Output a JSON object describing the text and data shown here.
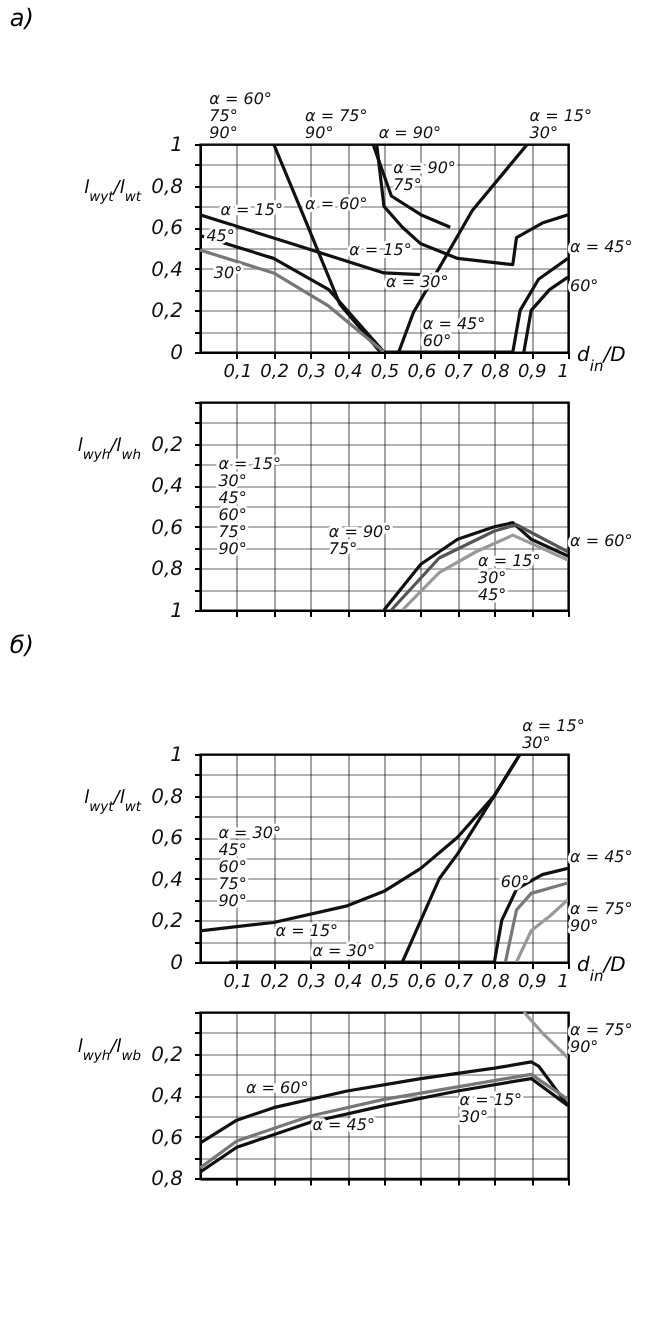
{
  "chart_data": [
    {
      "type": "line",
      "title": "а)",
      "xlabel": "d$_{in}$/D",
      "ylabel": "l$_{wyt}$/l$_{wt}$",
      "xlim": [
        0,
        1
      ],
      "ylim": [
        0,
        1
      ],
      "grid": true,
      "xticks": [
        {
          "value": 0.1,
          "label": "0,1"
        },
        {
          "value": 0.2,
          "label": "0,2"
        },
        {
          "value": 0.3,
          "label": "0,3"
        },
        {
          "value": 0.4,
          "label": "0,4"
        },
        {
          "value": 0.5,
          "label": "0,5"
        },
        {
          "value": 0.6,
          "label": "0,6"
        },
        {
          "value": 0.7,
          "label": "0,7"
        },
        {
          "value": 0.8,
          "label": "0,8"
        },
        {
          "value": 0.9,
          "label": "0,9"
        },
        {
          "value": 1,
          "label": "1"
        }
      ],
      "yticks": [
        {
          "value": 0,
          "label": "0"
        },
        {
          "value": 0.1,
          "label": null
        },
        {
          "value": 0.2,
          "label": "0,2"
        },
        {
          "value": 0.3,
          "label": null
        },
        {
          "value": 0.4,
          "label": "0,4"
        },
        {
          "value": 0.5,
          "label": null
        },
        {
          "value": 0.6,
          "label": "0,6"
        },
        {
          "value": 0.7,
          "label": null
        },
        {
          "value": 0.8,
          "label": "0,8"
        },
        {
          "value": 0.9,
          "label": null
        },
        {
          "value": 1,
          "label": "1"
        }
      ],
      "series": [
        {
          "color": "#111111",
          "x": [
            0,
            0.2,
            0.28,
            0.38,
            0.49
          ],
          "values": [
            1,
            1,
            0.66,
            0.23,
            0
          ]
        },
        {
          "color": "#111111",
          "x": [
            0.2,
            0.47,
            0.52,
            0.6,
            0.68
          ],
          "values": [
            1,
            1,
            0.75,
            0.66,
            0.6
          ]
        },
        {
          "color": "#111111",
          "x": [
            0.48,
            0.5,
            0.55,
            0.6,
            0.7,
            0.85,
            0.86,
            0.93,
            1
          ],
          "values": [
            1,
            0.7,
            0.6,
            0.52,
            0.45,
            0.42,
            0.55,
            0.62,
            0.66
          ]
        },
        {
          "color": "#111111",
          "x": [
            0,
            0.25,
            0.5,
            0.63
          ],
          "values": [
            0.66,
            0.52,
            0.38,
            0.37
          ]
        },
        {
          "color": "#111111",
          "x": [
            0.54,
            0.58,
            0.74,
            0.89,
            1
          ],
          "values": [
            0,
            0.19,
            0.68,
            1,
            1
          ]
        },
        {
          "color": "#111111",
          "x": [
            0,
            0.2,
            0.35,
            0.45,
            0.5
          ],
          "values": [
            0.56,
            0.45,
            0.3,
            0.1,
            0
          ]
        },
        {
          "color": "#777777",
          "x": [
            0,
            0.2,
            0.35,
            0.5
          ],
          "values": [
            0.49,
            0.38,
            0.22,
            0
          ]
        },
        {
          "color": "#111111",
          "x": [
            0.5,
            0.85,
            0.87,
            0.92,
            1
          ],
          "values": [
            0,
            0,
            0.2,
            0.35,
            0.45
          ]
        },
        {
          "color": "#111111",
          "x": [
            0.88,
            0.9,
            0.95,
            1
          ],
          "values": [
            0,
            0.2,
            0.3,
            0.36
          ]
        }
      ],
      "annotations": [
        {
          "text": "α = 60°\n75°\n90°",
          "x": 0.02,
          "y": 1
        },
        {
          "text": "α = 75°\n90°",
          "x": 0.28,
          "y": 1
        },
        {
          "text": "α = 90°",
          "x": 0.48,
          "y": 1
        },
        {
          "text": "α = 15°\n30°",
          "x": 0.89,
          "y": 1
        },
        {
          "text": "α = 15°",
          "x": 0.05,
          "y": 0.632
        },
        {
          "text": "45°",
          "x": 0.1,
          "y": 0.505
        },
        {
          "text": "30°",
          "x": 0.12,
          "y": 0.424
        },
        {
          "text": "α = 60°",
          "x": 0.28,
          "y": 0.66
        },
        {
          "text": "α = 15°",
          "x": 0.4,
          "y": 0.436
        },
        {
          "text": "α = 90°\n75°",
          "x": 0.52,
          "y": 0.75
        },
        {
          "text": "α = 30°",
          "x": 0.5,
          "y": 0.38
        },
        {
          "text": "α = 45°",
          "x": 1,
          "y": 0.45
        },
        {
          "text": "60°",
          "x": 1,
          "y": 0.36
        },
        {
          "text": "α = 45°\n60°",
          "x": 0.6,
          "y": 0
        }
      ]
    },
    {
      "type": "line",
      "ylabel": "l$_{wyh}$/l$_{wh}$",
      "xlim": [
        0,
        1
      ],
      "ylim": [
        1,
        0
      ],
      "grid": true,
      "tick_labels": "y",
      "xticks": [
        {
          "value": 0.1,
          "label": null
        },
        {
          "value": 0.2,
          "label": null
        },
        {
          "value": 0.3,
          "label": null
        },
        {
          "value": 0.4,
          "label": null
        },
        {
          "value": 0.5,
          "label": null
        },
        {
          "value": 0.6,
          "label": null
        },
        {
          "value": 0.7,
          "label": null
        },
        {
          "value": 0.8,
          "label": null
        },
        {
          "value": 0.9,
          "label": null
        },
        {
          "value": 1,
          "label": null
        }
      ],
      "yticks": [
        {
          "value": 0,
          "label": null
        },
        {
          "value": 0.1,
          "label": null
        },
        {
          "value": 0.2,
          "label": "0,2"
        },
        {
          "value": 0.3,
          "label": null
        },
        {
          "value": 0.4,
          "label": "0,4"
        },
        {
          "value": 0.5,
          "label": null
        },
        {
          "value": 0.6,
          "label": "0,6"
        },
        {
          "value": 0.7,
          "label": null
        },
        {
          "value": 0.8,
          "label": "0,8"
        },
        {
          "value": 0.9,
          "label": null
        },
        {
          "value": 1,
          "label": "1"
        }
      ],
      "series": [
        {
          "color": "#111111",
          "x": [
            0.5,
            0.6,
            0.7,
            0.8,
            0.85,
            0.9,
            1
          ],
          "values": [
            1,
            0.78,
            0.66,
            0.6,
            0.58,
            0.66,
            0.74
          ]
        },
        {
          "color": "#555555",
          "x": [
            0.52,
            0.65,
            0.8,
            0.86,
            1
          ],
          "values": [
            1,
            0.75,
            0.62,
            0.59,
            0.72
          ]
        },
        {
          "color": "#999999",
          "x": [
            0.55,
            0.65,
            0.75,
            0.85,
            1
          ],
          "values": [
            1,
            0.82,
            0.72,
            0.64,
            0.76
          ]
        }
      ],
      "annotations": [
        "α = 15°\n30°\n45°\n60°\n75°\n90°",
        "α = 90°\n75°",
        {
          "text": "α = 60°",
          "x": 1,
          "y": 0.72
        },
        {
          "text": "α = 15°\n30°\n45°",
          "x": 0.75,
          "y": 0.72
        }
      ]
    },
    {
      "type": "line",
      "title": "б)",
      "xlabel": "d$_{in}$/D",
      "ylabel": "l$_{wyt}$/l$_{wt}$",
      "xlim": [
        0,
        1
      ],
      "ylim": [
        0,
        1
      ],
      "grid": true,
      "xticks": [
        {
          "value": 0.1,
          "label": "0,1"
        },
        {
          "value": 0.2,
          "label": "0,2"
        },
        {
          "value": 0.3,
          "label": "0,3"
        },
        {
          "value": 0.4,
          "label": "0,4"
        },
        {
          "value": 0.5,
          "label": "0,5"
        },
        {
          "value": 0.6,
          "label": "0,6"
        },
        {
          "value": 0.7,
          "label": "0,7"
        },
        {
          "value": 0.8,
          "label": "0,8"
        },
        {
          "value": 0.9,
          "label": "0,9"
        },
        {
          "value": 1,
          "label": "1"
        }
      ],
      "yticks": [
        {
          "value": 0,
          "label": "0"
        },
        {
          "value": 0.1,
          "label": null
        },
        {
          "value": 0.2,
          "label": "0,2"
        },
        {
          "value": 0.3,
          "label": null
        },
        {
          "value": 0.4,
          "label": "0,4"
        },
        {
          "value": 0.5,
          "label": null
        },
        {
          "value": 0.6,
          "label": "0,6"
        },
        {
          "value": 0.7,
          "label": null
        },
        {
          "value": 0.8,
          "label": "0,8"
        },
        {
          "value": 0.9,
          "label": null
        },
        {
          "value": 1,
          "label": "1"
        }
      ],
      "series": [
        {
          "color": "#111111",
          "x": [
            0,
            0.2,
            0.4,
            0.5,
            0.6,
            0.7,
            0.8,
            0.87,
            1
          ],
          "values": [
            0.15,
            0.19,
            0.27,
            0.34,
            0.45,
            0.6,
            0.8,
            1,
            1
          ]
        },
        {
          "color": "#111111",
          "x": [
            0.08,
            0.55,
            0.6,
            0.65,
            0.7,
            0.8,
            0.87
          ],
          "values": [
            0,
            0,
            0.2,
            0.4,
            0.52,
            0.8,
            1
          ]
        },
        {
          "color": "#111111",
          "x": [
            0.55,
            0.8,
            0.82,
            0.86,
            0.93,
            1
          ],
          "values": [
            0,
            0,
            0.2,
            0.35,
            0.42,
            0.45
          ]
        },
        {
          "color": "#777777",
          "x": [
            0.83,
            0.86,
            0.9,
            1
          ],
          "values": [
            0,
            0.25,
            0.33,
            0.38
          ]
        },
        {
          "color": "#999999",
          "x": [
            0.86,
            0.9,
            0.95,
            1
          ],
          "values": [
            0,
            0.15,
            0.22,
            0.3
          ]
        }
      ],
      "annotations": [
        {
          "text": "α = 15°\n30°",
          "x": 0.87,
          "y": 1
        },
        {
          "text": "α = 15°",
          "x": 0.2,
          "y": 0.19
        },
        "α = 30°\n45°\n60°\n75°\n90°",
        {
          "text": "α = 30°",
          "x": 0.3,
          "y": 0
        },
        {
          "text": "α = 45°",
          "x": 1,
          "y": 0.45
        },
        {
          "text": "60°",
          "x": 0.9,
          "y": 0.33
        },
        {
          "text": "α = 75°\n90°",
          "x": 1,
          "y": 0.3
        }
      ]
    },
    {
      "type": "line",
      "ylabel": "l$_{wyh}$/l$_{wb}$",
      "xlim": [
        0,
        1
      ],
      "ylim": [
        0.8,
        0
      ],
      "grid": true,
      "tick_labels": "y",
      "xticks": [
        {
          "value": 0.1,
          "label": null
        },
        {
          "value": 0.2,
          "label": null
        },
        {
          "value": 0.3,
          "label": null
        },
        {
          "value": 0.4,
          "label": null
        },
        {
          "value": 0.5,
          "label": null
        },
        {
          "value": 0.6,
          "label": null
        },
        {
          "value": 0.7,
          "label": null
        },
        {
          "value": 0.8,
          "label": null
        },
        {
          "value": 0.9,
          "label": null
        },
        {
          "value": 1,
          "label": null
        }
      ],
      "yticks": [
        {
          "value": 0,
          "label": null
        },
        {
          "value": 0.1,
          "label": null
        },
        {
          "value": 0.2,
          "label": "0,2"
        },
        {
          "value": 0.3,
          "label": null
        },
        {
          "value": 0.4,
          "label": "0,4"
        },
        {
          "value": 0.5,
          "label": null
        },
        {
          "value": 0.6,
          "label": "0,6"
        },
        {
          "value": 0.7,
          "label": null
        },
        {
          "value": 0.8,
          "label": "0,8"
        }
      ],
      "series": [
        {
          "color": "#111111",
          "x": [
            0,
            0.1,
            0.2,
            0.4,
            0.6,
            0.8,
            0.9,
            0.92,
            1
          ],
          "values": [
            0.63,
            0.52,
            0.46,
            0.38,
            0.32,
            0.27,
            0.24,
            0.26,
            0.45
          ]
        },
        {
          "color": "#777777",
          "x": [
            0,
            0.1,
            0.3,
            0.5,
            0.7,
            0.9,
            1
          ],
          "values": [
            0.75,
            0.62,
            0.5,
            0.42,
            0.36,
            0.3,
            0.42
          ]
        },
        {
          "color": "#111111",
          "x": [
            0,
            0.1,
            0.3,
            0.5,
            0.7,
            0.9,
            1
          ],
          "values": [
            0.77,
            0.65,
            0.53,
            0.45,
            0.38,
            0.32,
            0.45
          ]
        },
        {
          "color": "#999999",
          "x": [
            0.88,
            0.93,
            1
          ],
          "values": [
            0,
            0.1,
            0.22
          ]
        }
      ],
      "annotations": [
        {
          "text": "α = 75°\n90°",
          "x": 1,
          "y": 0.22
        },
        {
          "text": "α = 60°",
          "x": 0.3,
          "y": 0.42
        },
        {
          "text": "α = 45°",
          "x": 0.3,
          "y": 0.5
        },
        {
          "text": "α = 15°\n30°",
          "x": 0.7,
          "y": 0.38
        }
      ]
    }
  ]
}
